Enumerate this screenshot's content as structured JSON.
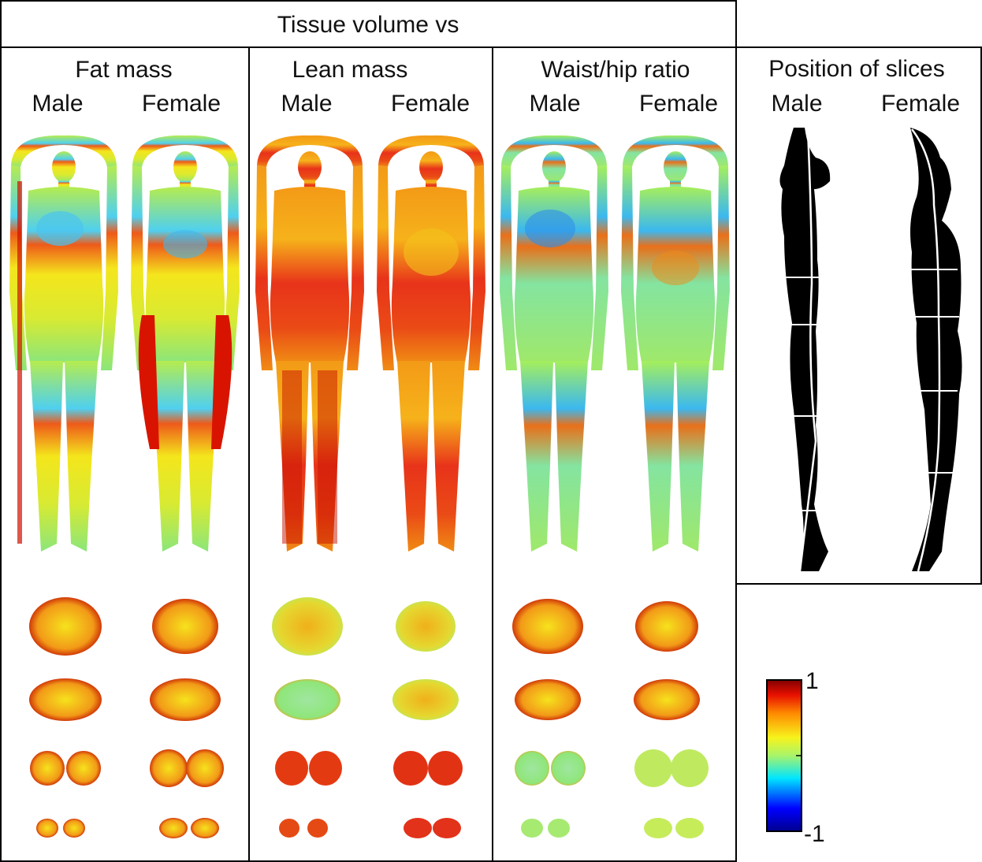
{
  "header": {
    "title": "Tissue volume vs"
  },
  "panels": [
    {
      "title": "Fat mass",
      "male": "Male",
      "female": "Female"
    },
    {
      "title": "Lean mass",
      "male": "Male",
      "female": "Female"
    },
    {
      "title": "Waist/hip ratio",
      "male": "Male",
      "female": "Female"
    }
  ],
  "slices_panel": {
    "title": "Position of slices",
    "male": "Male",
    "female": "Female"
  },
  "colorbar": {
    "max_label": "1",
    "min_label": "-1"
  },
  "colors": {
    "blue": "#00008f",
    "cyan": "#00e5ff",
    "green": "#a8f46a",
    "yellow": "#f7f31c",
    "orange": "#ff8a00",
    "red": "#c00000",
    "dark_red": "#800000"
  }
}
